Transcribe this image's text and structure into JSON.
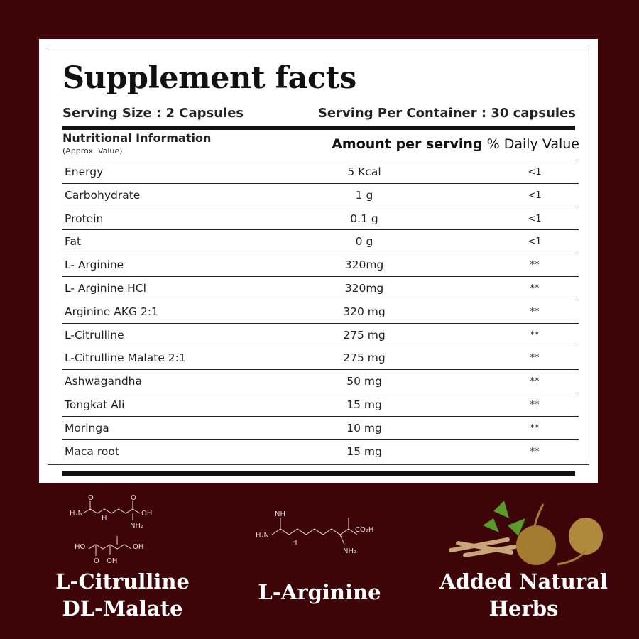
{
  "title": "Supplement facts",
  "serving_size": "Serving Size : 2 Capsules",
  "serving_per_container": "Serving Per Container : 30 capsules",
  "header": {
    "left": "Nutritional Information",
    "left_sub": "(Approx. Value)",
    "amount": "Amount per serving",
    "dv": "% Daily Value"
  },
  "rows": [
    {
      "name": "Energy",
      "amount": "5 Kcal",
      "dv": "<1"
    },
    {
      "name": "Carbohydrate",
      "amount": "1 g",
      "dv": "<1"
    },
    {
      "name": "Protein",
      "amount": "0.1 g",
      "dv": "<1"
    },
    {
      "name": "Fat",
      "amount": "0 g",
      "dv": "<1"
    },
    {
      "name": "L- Arginine",
      "amount": "320mg",
      "dv": "**"
    },
    {
      "name": "L- Arginine HCl",
      "amount": "320mg",
      "dv": "**"
    },
    {
      "name": "Arginine AKG 2:1",
      "amount": "320 mg",
      "dv": "**"
    },
    {
      "name": "L-Citrulline",
      "amount": "275 mg",
      "dv": "**"
    },
    {
      "name": "L-Citrulline Malate 2:1",
      "amount": "275 mg",
      "dv": "**"
    },
    {
      "name": "Ashwagandha",
      "amount": "50 mg",
      "dv": "**"
    },
    {
      "name": "Tongkat Ali",
      "amount": "15 mg",
      "dv": "**"
    },
    {
      "name": "Moringa",
      "amount": "10 mg",
      "dv": "**"
    },
    {
      "name": "Maca root",
      "amount": "15 mg",
      "dv": "**"
    }
  ],
  "features": {
    "citrulline_line1": "L-Citrulline",
    "citrulline_line2": "DL-Malate",
    "arginine": "L-Arginine",
    "herbs_line1": "Added Natural",
    "herbs_line2": "Herbs"
  },
  "molecules": {
    "h2n": "H₂N",
    "nh": "NH",
    "h": "H",
    "oh": "OH",
    "nh2": "NH₂",
    "o": "O",
    "ho": "HO",
    "co2h": "CO₂H"
  },
  "colors": {
    "background": "#3d0508",
    "panel": "#ffffff",
    "text": "#111111"
  }
}
